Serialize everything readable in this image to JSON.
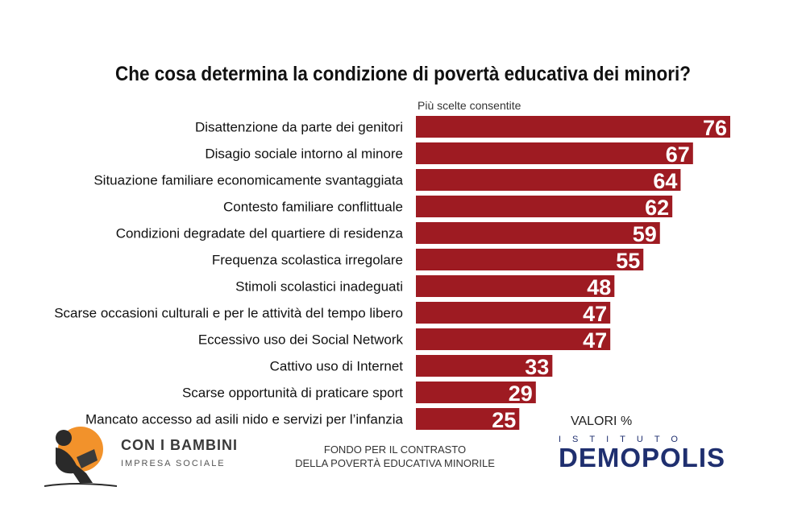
{
  "title": "Che cosa determina la condizione di povertà educativa dei minori?",
  "note": "Più scelte consentite",
  "units_label": "VALORI %",
  "footer": {
    "logo_name": "CON I BAMBINI",
    "logo_sub": "IMPRESA SOCIALE",
    "fund_line1": "FONDO PER IL CONTRASTO",
    "fund_line2": "DELLA POVERTÀ EDUCATIVA MINORILE",
    "institute_top": "ISTITUTO",
    "institute_name": "DEMOPOLIS"
  },
  "colors": {
    "bar": "#9e1b22",
    "value_text": "#ffffff",
    "brand_orange": "#f2922b",
    "brand_blue": "#1f2f6f"
  },
  "chart_data": {
    "type": "bar",
    "orientation": "horizontal",
    "categories": [
      "Disattenzione da parte dei genitori",
      "Disagio sociale intorno al minore",
      "Situazione familiare economicamente  svantaggiata",
      "Contesto familiare conflittuale",
      "Condizioni degradate del quartiere di residenza",
      "Frequenza scolastica irregolare",
      "Stimoli scolastici inadeguati",
      "Scarse occasioni culturali e per le attività del tempo libero",
      "Eccessivo uso dei Social Network",
      "Cattivo uso di Internet",
      "Scarse opportunità di praticare sport",
      "Mancato accesso ad asili nido e servizi per l’infanzia"
    ],
    "values": [
      76,
      67,
      64,
      62,
      59,
      55,
      48,
      47,
      47,
      33,
      29,
      25
    ],
    "xlim": [
      0,
      76
    ],
    "grid": false,
    "legend": "none"
  }
}
